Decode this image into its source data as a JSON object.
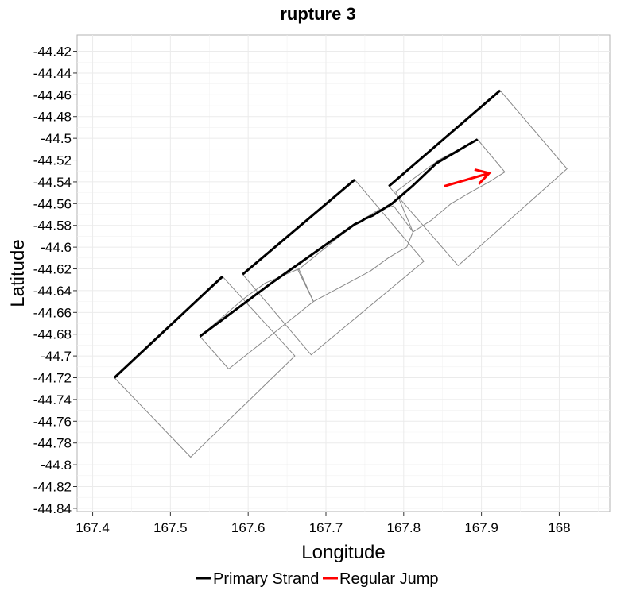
{
  "chart_data": {
    "type": "line",
    "title": "rupture 3",
    "xlabel": "Longitude",
    "ylabel": "Latitude",
    "xlim": [
      167.38,
      168.065
    ],
    "ylim": [
      -44.843,
      -44.405
    ],
    "xticks": [
      167.4,
      167.5,
      167.6,
      167.7,
      167.8,
      167.9,
      168
    ],
    "xtick_labels": [
      "167.4",
      "167.5",
      "167.6",
      "167.7",
      "167.8",
      "167.9",
      "168"
    ],
    "yticks": [
      -44.42,
      -44.44,
      -44.46,
      -44.48,
      -44.5,
      -44.52,
      -44.54,
      -44.56,
      -44.58,
      -44.6,
      -44.62,
      -44.64,
      -44.66,
      -44.68,
      -44.7,
      -44.72,
      -44.74,
      -44.76,
      -44.78,
      -44.8,
      -44.82,
      -44.84
    ],
    "ytick_labels": [
      "-44.42",
      "-44.44",
      "-44.46",
      "-44.48",
      "-44.5",
      "-44.52",
      "-44.54",
      "-44.56",
      "-44.58",
      "-44.6",
      "-44.62",
      "-44.64",
      "-44.66",
      "-44.68",
      "-44.7",
      "-44.72",
      "-44.74",
      "-44.76",
      "-44.78",
      "-44.8",
      "-44.82",
      "-44.84"
    ],
    "grid": true,
    "legend_position": "bottom",
    "legend": [
      {
        "label": "Primary Strand",
        "color": "#000000"
      },
      {
        "label": "Regular Jump",
        "color": "#ff0000"
      }
    ],
    "series": [
      {
        "name": "Primary Strand",
        "color": "#000000",
        "role": "strand",
        "segments": [
          [
            [
              167.428,
              -44.72
            ],
            [
              167.567,
              -44.627
            ]
          ],
          [
            [
              167.593,
              -44.625
            ],
            [
              167.737,
              -44.538
            ]
          ],
          [
            [
              167.781,
              -44.544
            ],
            [
              167.924,
              -44.456
            ]
          ],
          [
            [
              167.538,
              -44.682
            ],
            [
              167.628,
              -44.634
            ],
            [
              167.737,
              -44.579
            ],
            [
              167.746,
              -44.576
            ],
            [
              167.75,
              -44.574
            ],
            [
              167.76,
              -44.571
            ],
            [
              167.785,
              -44.56
            ],
            [
              167.811,
              -44.544
            ],
            [
              167.842,
              -44.523
            ],
            [
              167.885,
              -44.505
            ],
            [
              167.895,
              -44.501
            ]
          ]
        ]
      },
      {
        "name": "Regular Jump",
        "color": "#ff0000",
        "role": "jump",
        "segments": [
          [
            [
              167.852,
              -44.544
            ],
            [
              167.91,
              -44.532
            ]
          ]
        ],
        "arrow": true
      },
      {
        "name": "",
        "color": "#888888",
        "role": "outline",
        "segments": [
          [
            [
              167.428,
              -44.72
            ],
            [
              167.567,
              -44.627
            ],
            [
              167.66,
              -44.7
            ],
            [
              167.526,
              -44.793
            ],
            [
              167.428,
              -44.72
            ]
          ],
          [
            [
              167.538,
              -44.682
            ],
            [
              167.595,
              -44.647
            ],
            [
              167.622,
              -44.633
            ],
            [
              167.665,
              -44.62
            ],
            [
              167.684,
              -44.65
            ],
            [
              167.575,
              -44.712
            ],
            [
              167.538,
              -44.682
            ]
          ],
          [
            [
              167.593,
              -44.625
            ],
            [
              167.737,
              -44.538
            ],
            [
              167.826,
              -44.613
            ],
            [
              167.681,
              -44.699
            ],
            [
              167.593,
              -44.625
            ]
          ],
          [
            [
              167.664,
              -44.621
            ],
            [
              167.735,
              -44.58
            ],
            [
              167.767,
              -44.566
            ],
            [
              167.787,
              -44.562
            ],
            [
              167.812,
              -44.586
            ],
            [
              167.804,
              -44.6
            ],
            [
              167.794,
              -44.604
            ],
            [
              167.78,
              -44.61
            ],
            [
              167.757,
              -44.622
            ],
            [
              167.684,
              -44.65
            ],
            [
              167.664,
              -44.621
            ]
          ],
          [
            [
              167.781,
              -44.544
            ],
            [
              167.924,
              -44.456
            ],
            [
              168.01,
              -44.528
            ],
            [
              167.87,
              -44.617
            ],
            [
              167.781,
              -44.544
            ]
          ],
          [
            [
              167.79,
              -44.549
            ],
            [
              167.845,
              -44.52
            ],
            [
              167.895,
              -44.501
            ],
            [
              167.93,
              -44.531
            ],
            [
              167.91,
              -44.54
            ],
            [
              167.885,
              -44.55
            ],
            [
              167.861,
              -44.56
            ],
            [
              167.836,
              -44.575
            ],
            [
              167.812,
              -44.586
            ],
            [
              167.79,
              -44.549
            ]
          ]
        ]
      }
    ]
  }
}
